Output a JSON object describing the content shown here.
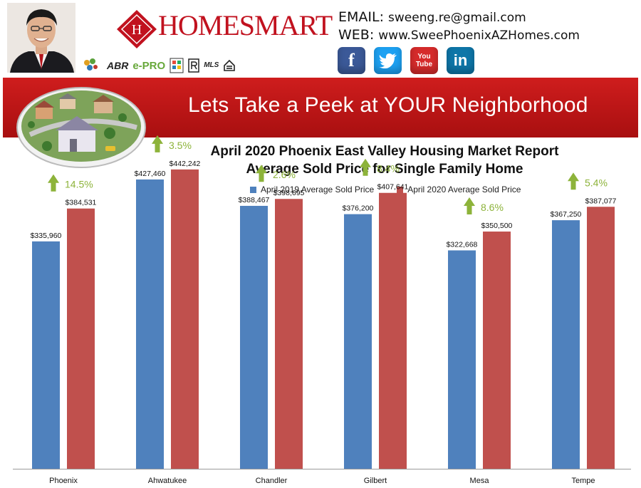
{
  "header": {
    "brand_name": "HOMESMART",
    "brand_monogram": "H",
    "certifications": [
      "ABR",
      "e-PRO",
      "MLS"
    ],
    "contact": {
      "email_label": "EMAIL:",
      "email": "sweeng.re@gmail.com",
      "web_label": "WEB:",
      "web": "www.SweePhoenixAZHomes.com"
    },
    "social": [
      {
        "name": "facebook",
        "glyph": "f",
        "color": "#3b5998"
      },
      {
        "name": "twitter",
        "glyph": "t",
        "color": "#1da1f2"
      },
      {
        "name": "youtube",
        "glyph": "You Tube",
        "color": "#d62b2b"
      },
      {
        "name": "linkedin",
        "glyph": "in",
        "color": "#0e76a8"
      }
    ]
  },
  "banner": {
    "text": "Lets Take a Peek at YOUR Neighborhood",
    "color": "#c4151a"
  },
  "chart_data": {
    "type": "bar",
    "title": "April 2020 Phoenix East Valley Housing Market Report",
    "subtitle": "Average Sold Price for Single Family Home",
    "categories": [
      "Phoenix",
      "Ahwatukee",
      "Chandler",
      "Gilbert",
      "Mesa",
      "Tempe"
    ],
    "series": [
      {
        "name": "April 2019 Average Sold Price",
        "color": "#4f81bd",
        "values": [
          335960,
          427460,
          388467,
          376200,
          322668,
          367250
        ],
        "labels": [
          "$335,960",
          "$427,460",
          "$388,467",
          "$376,200",
          "$322,668",
          "$367,250"
        ]
      },
      {
        "name": "April 2020 Average Sold Price",
        "color": "#c0504d",
        "values": [
          384531,
          442242,
          398695,
          407641,
          350500,
          387077
        ],
        "labels": [
          "$384,531",
          "$442,242",
          "$398,695",
          "$407,641",
          "$350,500",
          "$387,077"
        ]
      }
    ],
    "annotations": [
      "14.5%",
      "3.5%",
      "2.6%",
      "8.4%",
      "8.6%",
      "5.4%"
    ],
    "annotation_color": "#8db33a",
    "ylim": [
      0,
      500000
    ],
    "grid": false,
    "legend_position": "top-center"
  }
}
